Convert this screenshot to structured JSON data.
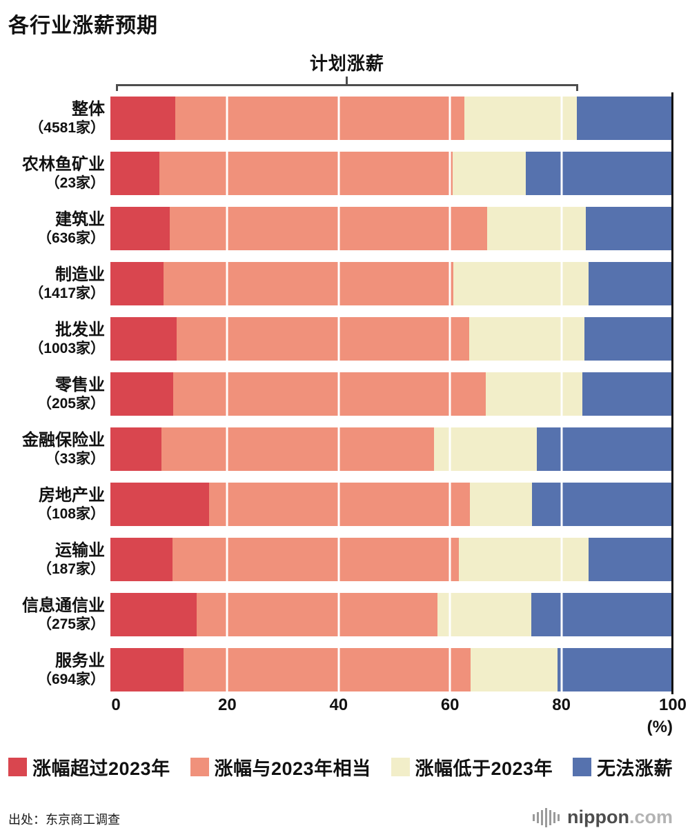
{
  "title": "各行业涨薪预期",
  "axis": {
    "percent_label": "(%)"
  },
  "footer": {
    "source": "出处：东京商工调查",
    "logo": {
      "name": "nippon",
      "tld": ".com"
    }
  },
  "chart_data": {
    "type": "bar",
    "stacked": true,
    "orientation": "horizontal",
    "unit": "%",
    "xlim": [
      0,
      100
    ],
    "x_ticks": [
      0,
      20,
      40,
      60,
      80,
      100
    ],
    "grid": "white-lines-over-bars",
    "legend_position": "bottom",
    "annotation": {
      "label": "计划涨薪",
      "span_start": 0,
      "span_end": 83
    },
    "categories": [
      {
        "label": "整体",
        "count": "（4581家）"
      },
      {
        "label": "农林鱼矿业",
        "count": "（23家）"
      },
      {
        "label": "建筑业",
        "count": "（636家）"
      },
      {
        "label": "制造业",
        "count": "（1417家）"
      },
      {
        "label": "批发业",
        "count": "（1003家）"
      },
      {
        "label": "零售业",
        "count": "（205家）"
      },
      {
        "label": "金融保险业",
        "count": "（33家）"
      },
      {
        "label": "房地产业",
        "count": "（108家）"
      },
      {
        "label": "运输业",
        "count": "（187家）"
      },
      {
        "label": "信息通信业",
        "count": "（275家）"
      },
      {
        "label": "服务业",
        "count": "（694家）"
      }
    ],
    "series": [
      {
        "name": "涨幅超过2023年",
        "color": "#d9464f",
        "values": [
          11.5,
          8.7,
          10.5,
          9.5,
          11.8,
          11.2,
          9.1,
          17.6,
          11.0,
          15.3,
          13.0
        ]
      },
      {
        "name": "涨幅与2023年相当",
        "color": "#f0917b",
        "values": [
          51.5,
          52.2,
          56.5,
          51.5,
          52.0,
          55.6,
          48.5,
          46.3,
          51.0,
          42.9,
          51.0
        ]
      },
      {
        "name": "涨幅低于2023年",
        "color": "#f2eec9",
        "values": [
          20.0,
          13.0,
          17.5,
          24.0,
          20.5,
          17.1,
          18.2,
          11.1,
          23.0,
          16.7,
          15.5
        ]
      },
      {
        "name": "无法涨薪",
        "color": "#5672ae",
        "values": [
          17.0,
          26.1,
          15.5,
          15.0,
          15.7,
          16.1,
          24.2,
          25.0,
          15.0,
          25.1,
          20.5
        ]
      }
    ]
  }
}
